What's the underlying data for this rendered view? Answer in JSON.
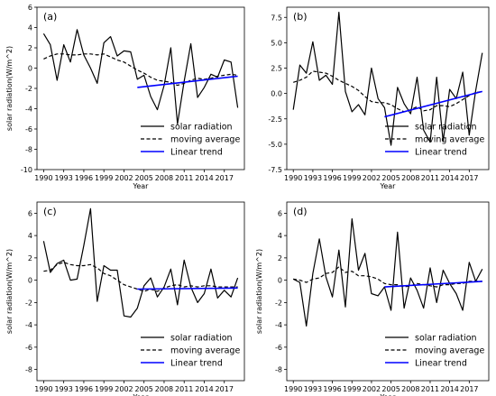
{
  "chart_data": [
    {
      "type": "line",
      "panel_label": "(a)",
      "xlabel": "Year",
      "ylabel": "solar radiation(W/m^2)",
      "xlim": [
        1989,
        2020
      ],
      "ylim": [
        -10,
        6
      ],
      "yticks": [
        6,
        4,
        2,
        0,
        -2,
        -4,
        -6,
        -8,
        -10
      ],
      "xticks": [
        1990,
        1993,
        1996,
        1999,
        2002,
        2005,
        2008,
        2011,
        2014,
        2017
      ],
      "legend": [
        "solar radiation",
        "moving average",
        "Linear trend"
      ],
      "legend_position": "lower-right",
      "series": [
        {
          "name": "solar radiation",
          "style": "solid",
          "color": "#000000",
          "x": [
            1990,
            1991,
            1992,
            1993,
            1994,
            1995,
            1996,
            1997,
            1998,
            1999,
            2000,
            2001,
            2002,
            2003,
            2004,
            2005,
            2006,
            2007,
            2008,
            2009,
            2010,
            2011,
            2012,
            2013,
            2014,
            2015,
            2016,
            2017,
            2018,
            2019
          ],
          "y": [
            3.4,
            2.3,
            -1.2,
            2.3,
            0.6,
            3.8,
            1.3,
            0.0,
            -1.5,
            2.5,
            3.1,
            1.2,
            1.7,
            1.6,
            -1.1,
            -0.7,
            -2.8,
            -4.1,
            -1.7,
            2.0,
            -5.5,
            -1.3,
            2.4,
            -2.9,
            -1.9,
            -0.6,
            -0.9,
            0.8,
            0.6,
            -3.9
          ]
        },
        {
          "name": "moving average",
          "style": "dashed",
          "color": "#000000",
          "x": [
            1990,
            1991,
            1992,
            1993,
            1994,
            1995,
            1996,
            1997,
            1998,
            1999,
            2000,
            2001,
            2002,
            2003,
            2004,
            2005,
            2006,
            2007,
            2008,
            2009,
            2010,
            2011,
            2012,
            2013,
            2014,
            2015,
            2016,
            2017,
            2018,
            2019
          ],
          "y": [
            0.9,
            1.2,
            1.4,
            1.4,
            1.3,
            1.3,
            1.4,
            1.4,
            1.3,
            1.4,
            1.1,
            0.8,
            0.6,
            0.2,
            -0.2,
            -0.5,
            -0.9,
            -1.2,
            -1.3,
            -1.4,
            -1.7,
            -1.5,
            -1.2,
            -1.0,
            -1.1,
            -1.0,
            -0.8,
            -0.7,
            -0.6,
            -0.7
          ]
        },
        {
          "name": "Linear trend",
          "style": "solid",
          "color": "#0000ff",
          "x": [
            2004,
            2019
          ],
          "y": [
            -1.9,
            -0.8
          ]
        }
      ]
    },
    {
      "type": "line",
      "panel_label": "(b)",
      "xlabel": "Year",
      "ylabel": "",
      "xlim": [
        1989,
        2020
      ],
      "ylim": [
        -7.5,
        8.5
      ],
      "yticks": [
        7.5,
        5.0,
        2.5,
        0.0,
        -2.5,
        -5.0,
        -7.5
      ],
      "ytick_labels": [
        "7.5",
        "5.0",
        "2.5",
        "0.0",
        "-2.5",
        "-5.0",
        "-7.5"
      ],
      "xticks": [
        1990,
        1993,
        1996,
        1999,
        2002,
        2005,
        2008,
        2011,
        2014,
        2017
      ],
      "legend": [
        "solar radiation",
        "moving average",
        "Linear trend"
      ],
      "legend_position": "lower-right",
      "series": [
        {
          "name": "solar radiation",
          "style": "solid",
          "color": "#000000",
          "x": [
            1990,
            1991,
            1992,
            1993,
            1994,
            1995,
            1996,
            1997,
            1998,
            1999,
            2000,
            2001,
            2002,
            2003,
            2004,
            2005,
            2006,
            2007,
            2008,
            2009,
            2010,
            2011,
            2012,
            2013,
            2014,
            2015,
            2016,
            2017,
            2018,
            2019
          ],
          "y": [
            -1.6,
            2.8,
            2.0,
            5.1,
            1.3,
            1.8,
            0.9,
            8.0,
            0.2,
            -1.8,
            -1.1,
            -2.1,
            2.5,
            -0.5,
            -1.4,
            -5.1,
            0.6,
            -1.0,
            -2.0,
            1.6,
            -3.6,
            -4.8,
            1.6,
            -4.7,
            0.4,
            -0.5,
            2.1,
            -4.1,
            0.3,
            4.0
          ]
        },
        {
          "name": "moving average",
          "style": "dashed",
          "color": "#000000",
          "x": [
            1990,
            1991,
            1992,
            1993,
            1994,
            1995,
            1996,
            1997,
            1998,
            1999,
            2000,
            2001,
            2002,
            2003,
            2004,
            2005,
            2006,
            2007,
            2008,
            2009,
            2010,
            2011,
            2012,
            2013,
            2014,
            2015,
            2016,
            2017,
            2018,
            2019
          ],
          "y": [
            1.1,
            1.3,
            1.6,
            2.2,
            2.1,
            2.0,
            1.7,
            1.3,
            1.0,
            0.7,
            0.3,
            -0.3,
            -0.8,
            -0.9,
            -0.9,
            -1.1,
            -1.5,
            -1.8,
            -1.6,
            -1.3,
            -1.7,
            -1.6,
            -1.2,
            -1.2,
            -1.3,
            -1.0,
            -0.6,
            -0.2,
            0.1,
            0.2
          ]
        },
        {
          "name": "Linear trend",
          "style": "solid",
          "color": "#0000ff",
          "x": [
            2004,
            2019
          ],
          "y": [
            -2.3,
            0.2
          ]
        }
      ]
    },
    {
      "type": "line",
      "panel_label": "(c)",
      "xlabel": "Year",
      "ylabel": "solar radiation(W/m^2)",
      "xlim": [
        1989,
        2020
      ],
      "ylim": [
        -9,
        7
      ],
      "yticks": [
        6,
        4,
        2,
        0,
        -2,
        -4,
        -6,
        -8
      ],
      "xticks": [
        1990,
        1993,
        1996,
        1999,
        2002,
        2005,
        2008,
        2011,
        2014,
        2017
      ],
      "legend": [
        "solar radiation",
        "moving average",
        "Linear trend"
      ],
      "legend_position": "lower-right",
      "series": [
        {
          "name": "solar radiation",
          "style": "solid",
          "color": "#000000",
          "x": [
            1990,
            1991,
            1992,
            1993,
            1994,
            1995,
            1996,
            1997,
            1998,
            1999,
            2000,
            2001,
            2002,
            2003,
            2004,
            2005,
            2006,
            2007,
            2008,
            2009,
            2010,
            2011,
            2012,
            2013,
            2014,
            2015,
            2016,
            2017,
            2018,
            2019
          ],
          "y": [
            3.5,
            0.7,
            1.5,
            1.8,
            0.0,
            0.1,
            3.1,
            6.4,
            -1.9,
            1.3,
            0.9,
            0.9,
            -3.2,
            -3.3,
            -2.5,
            -0.5,
            0.2,
            -1.5,
            -0.6,
            1.0,
            -2.2,
            1.8,
            -0.6,
            -2.0,
            -1.2,
            1.0,
            -1.6,
            -0.9,
            -1.5,
            0.2
          ]
        },
        {
          "name": "moving average",
          "style": "dashed",
          "color": "#000000",
          "x": [
            1990,
            1991,
            1992,
            1993,
            1994,
            1995,
            1996,
            1997,
            1998,
            1999,
            2000,
            2001,
            2002,
            2003,
            2004,
            2005,
            2006,
            2007,
            2008,
            2009,
            2010,
            2011,
            2012,
            2013,
            2014,
            2015,
            2016,
            2017,
            2018,
            2019
          ],
          "y": [
            0.8,
            0.9,
            1.4,
            1.6,
            1.4,
            1.3,
            1.3,
            1.4,
            1.1,
            0.6,
            0.4,
            0.0,
            -0.4,
            -0.6,
            -0.8,
            -1.0,
            -0.8,
            -1.0,
            -0.7,
            -0.5,
            -0.4,
            -0.6,
            -0.5,
            -0.6,
            -0.5,
            -0.5,
            -0.6,
            -0.6,
            -0.6,
            -0.6
          ]
        },
        {
          "name": "Linear trend",
          "style": "solid",
          "color": "#0000ff",
          "x": [
            2004,
            2019
          ],
          "y": [
            -0.8,
            -0.7
          ]
        }
      ]
    },
    {
      "type": "line",
      "panel_label": "(d)",
      "xlabel": "Year",
      "ylabel": "solar radiation(W/m^2)",
      "xlim": [
        1989,
        2020
      ],
      "ylim": [
        -9,
        7
      ],
      "yticks": [
        6,
        4,
        2,
        0,
        -2,
        -4,
        -6,
        -8
      ],
      "xticks": [
        1990,
        1993,
        1996,
        1999,
        2002,
        2005,
        2008,
        2011,
        2014,
        2017
      ],
      "legend": [
        "solar radiation",
        "moving average",
        "Linear trend"
      ],
      "legend_position": "lower-right",
      "series": [
        {
          "name": "solar radiation",
          "style": "solid",
          "color": "#000000",
          "x": [
            1990,
            1991,
            1992,
            1993,
            1994,
            1995,
            1996,
            1997,
            1998,
            1999,
            2000,
            2001,
            2002,
            2003,
            2004,
            2005,
            2006,
            2007,
            2008,
            2009,
            2010,
            2011,
            2012,
            2013,
            2014,
            2015,
            2016,
            2017,
            2018,
            2019
          ],
          "y": [
            0.1,
            -0.2,
            -4.1,
            0.6,
            3.7,
            0.3,
            -1.5,
            2.7,
            -2.4,
            5.5,
            0.9,
            2.4,
            -1.2,
            -1.4,
            -0.6,
            -2.7,
            4.3,
            -2.5,
            0.2,
            -0.9,
            -2.5,
            1.1,
            -2.0,
            0.9,
            -0.3,
            -1.2,
            -2.7,
            1.6,
            -0.1,
            1.0
          ]
        },
        {
          "name": "moving average",
          "style": "dashed",
          "color": "#000000",
          "x": [
            1990,
            1991,
            1992,
            1993,
            1994,
            1995,
            1996,
            1997,
            1998,
            1999,
            2000,
            2001,
            2002,
            2003,
            2004,
            2005,
            2006,
            2007,
            2008,
            2009,
            2010,
            2011,
            2012,
            2013,
            2014,
            2015,
            2016,
            2017,
            2018,
            2019
          ],
          "y": [
            0.1,
            0.0,
            -0.2,
            0.1,
            0.2,
            0.6,
            0.7,
            1.2,
            0.7,
            0.8,
            0.4,
            0.4,
            0.3,
            0.1,
            -0.3,
            -0.4,
            -0.4,
            -0.6,
            -0.5,
            -0.3,
            -0.4,
            -0.5,
            -0.6,
            -0.4,
            -0.4,
            -0.3,
            -0.3,
            -0.1,
            -0.1,
            -0.1
          ]
        },
        {
          "name": "Linear trend",
          "style": "solid",
          "color": "#0000ff",
          "x": [
            2004,
            2019
          ],
          "y": [
            -0.6,
            -0.1
          ]
        }
      ]
    }
  ]
}
